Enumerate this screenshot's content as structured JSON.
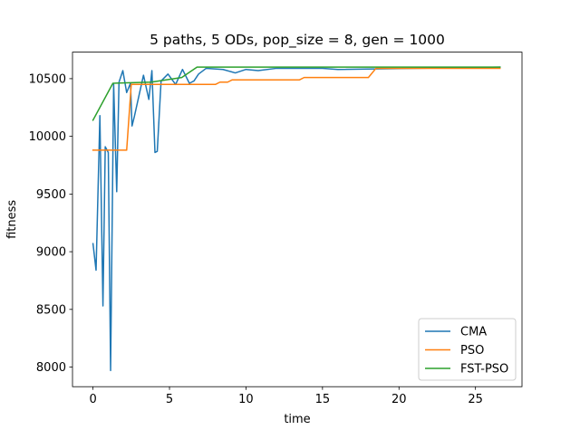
{
  "chart_data": {
    "type": "line",
    "title": "5 paths, 5 ODs, pop_size = 8, gen = 1000",
    "xlabel": "time",
    "ylabel": "fitness",
    "xlim": [
      -1.34,
      28.04
    ],
    "ylim": [
      7830,
      10730
    ],
    "x_ticks": [
      0,
      5,
      10,
      15,
      20,
      25
    ],
    "x_tick_labels": [
      "0",
      "5",
      "10",
      "15",
      "20",
      "25"
    ],
    "y_ticks": [
      8000,
      8500,
      9000,
      9500,
      10000,
      10500
    ],
    "y_tick_labels": [
      "8000",
      "8500",
      "9000",
      "9500",
      "10000",
      "10500"
    ],
    "grid": false,
    "legend_position": "lower-right",
    "series": [
      {
        "name": "CMA",
        "color": "#1f77b4",
        "points": [
          [
            0.0,
            9070
          ],
          [
            0.2,
            8840
          ],
          [
            0.45,
            10180
          ],
          [
            0.65,
            8530
          ],
          [
            0.8,
            9910
          ],
          [
            1.0,
            9860
          ],
          [
            1.15,
            7970
          ],
          [
            1.35,
            10450
          ],
          [
            1.55,
            9520
          ],
          [
            1.7,
            10470
          ],
          [
            1.95,
            10570
          ],
          [
            2.2,
            10380
          ],
          [
            2.45,
            10460
          ],
          [
            2.55,
            10090
          ],
          [
            2.7,
            10170
          ],
          [
            3.3,
            10530
          ],
          [
            3.65,
            10320
          ],
          [
            3.85,
            10570
          ],
          [
            4.05,
            9860
          ],
          [
            4.2,
            9870
          ],
          [
            4.45,
            10480
          ],
          [
            4.9,
            10540
          ],
          [
            5.4,
            10450
          ],
          [
            5.85,
            10580
          ],
          [
            6.3,
            10460
          ],
          [
            6.6,
            10480
          ],
          [
            6.9,
            10540
          ],
          [
            7.4,
            10590
          ],
          [
            8.5,
            10580
          ],
          [
            9.3,
            10550
          ],
          [
            10.0,
            10580
          ],
          [
            10.8,
            10570
          ],
          [
            12.0,
            10590
          ],
          [
            15.0,
            10590
          ],
          [
            16.0,
            10580
          ],
          [
            26.6,
            10600
          ]
        ]
      },
      {
        "name": "PSO",
        "color": "#ff7f0e",
        "points": [
          [
            0.0,
            9880
          ],
          [
            2.2,
            9880
          ],
          [
            2.5,
            10450
          ],
          [
            8.0,
            10450
          ],
          [
            8.3,
            10470
          ],
          [
            8.8,
            10470
          ],
          [
            9.1,
            10490
          ],
          [
            13.5,
            10490
          ],
          [
            13.8,
            10510
          ],
          [
            18.0,
            10510
          ],
          [
            18.5,
            10590
          ],
          [
            26.6,
            10590
          ]
        ]
      },
      {
        "name": "FST-PSO",
        "color": "#2ca02c",
        "points": [
          [
            0.0,
            10140
          ],
          [
            1.3,
            10460
          ],
          [
            3.8,
            10470
          ],
          [
            5.8,
            10510
          ],
          [
            6.8,
            10600
          ],
          [
            26.6,
            10600
          ]
        ]
      }
    ]
  }
}
